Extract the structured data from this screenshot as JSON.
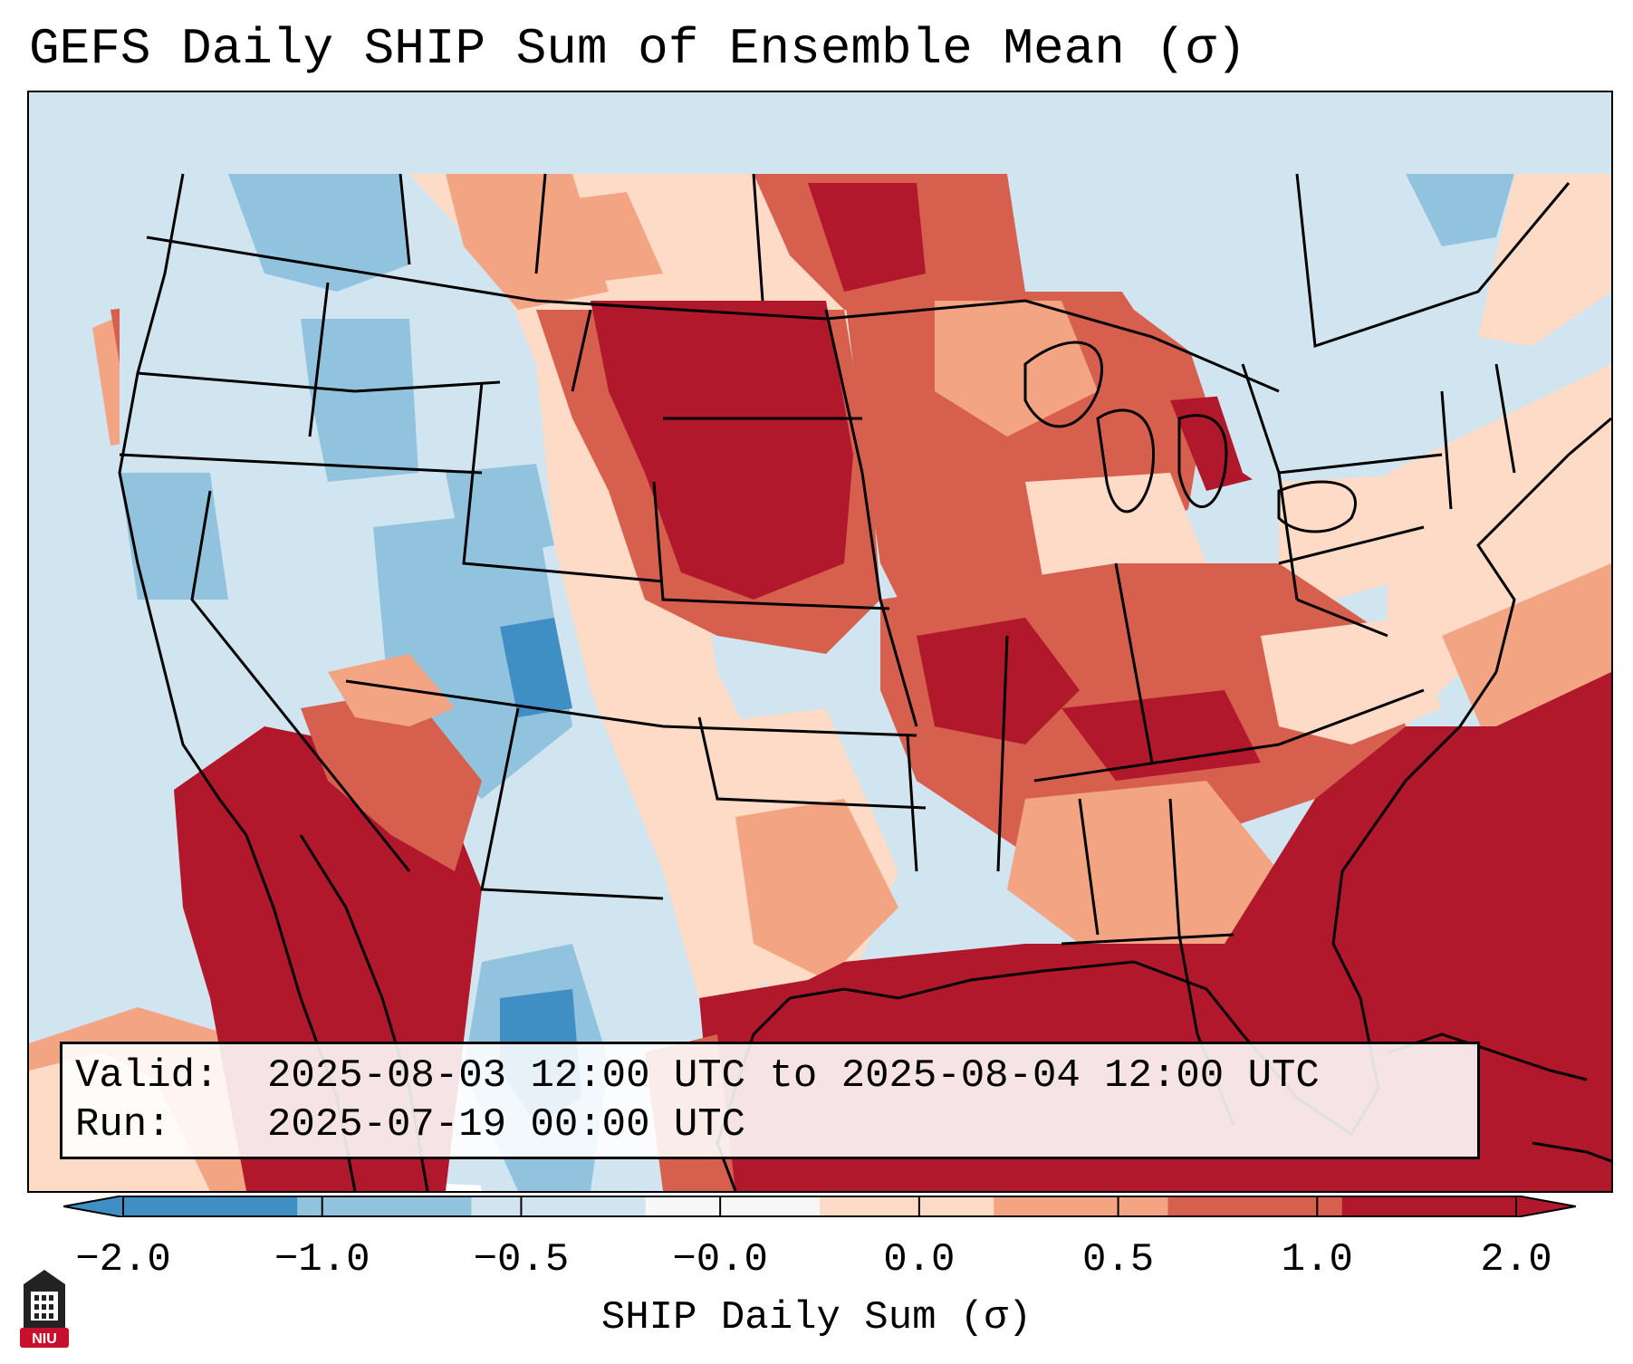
{
  "title": "GEFS Daily SHIP Sum of Ensemble Mean (σ)",
  "valid_label": "Valid:",
  "valid_value": "2025-08-03 12:00 UTC to 2025-08-04 12:00 UTC",
  "run_label": "Run:",
  "run_value": "2025-07-19 00:00 UTC",
  "logo_text": "NIU",
  "colorbar": {
    "label": "SHIP Daily Sum (σ)",
    "ticks": [
      "−2.0",
      "−1.0",
      "−0.5",
      "−0.0",
      "0.0",
      "0.5",
      "1.0",
      "2.0"
    ],
    "colors": [
      "#3f8fc4",
      "#91c3de",
      "#d1e5f0",
      "#f7f7f7",
      "#fddbc7",
      "#f3a482",
      "#d6604d",
      "#b2182b"
    ],
    "extend": "both"
  },
  "palette": {
    "dark_blue": "#3f8fc4",
    "mid_blue": "#91c3de",
    "light_blue": "#d1e5f0",
    "light_peach": "#fddbc7",
    "salmon": "#f3a482",
    "red": "#d6604d",
    "dark_red": "#b2182b"
  }
}
